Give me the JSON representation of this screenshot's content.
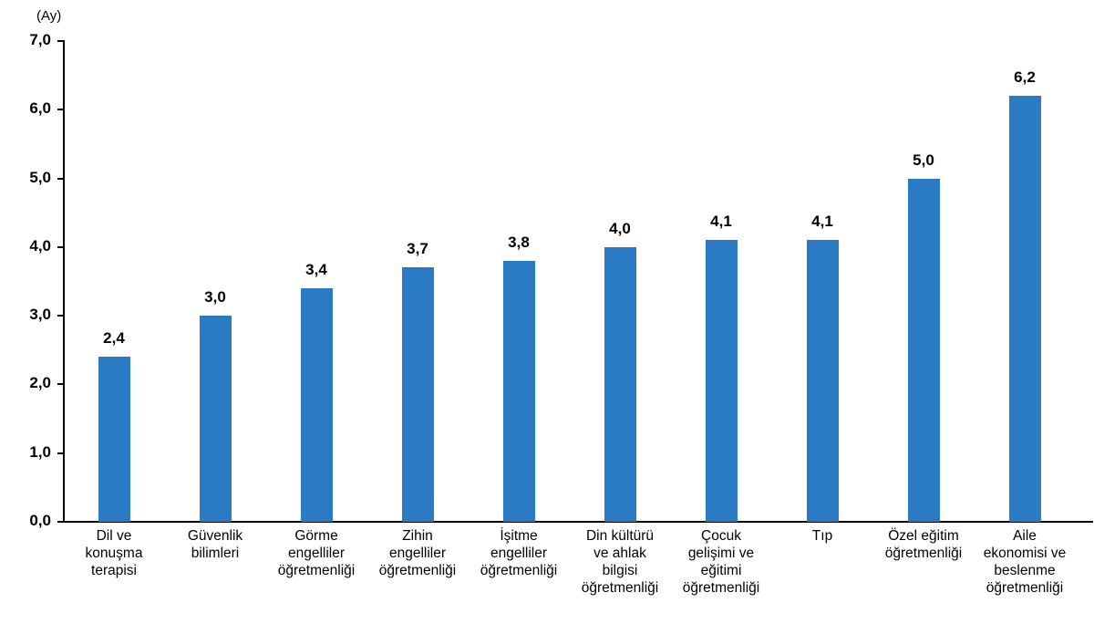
{
  "chart_data": {
    "type": "bar",
    "title": "",
    "xlabel": "",
    "ylabel": "(Ay)",
    "ylim": [
      0,
      7
    ],
    "grid": false,
    "legend": null,
    "y_ticks": [
      "0,0",
      "1,0",
      "2,0",
      "3,0",
      "4,0",
      "5,0",
      "6,0",
      "7,0"
    ],
    "categories": [
      "Dil ve\nkonuşma\nterapisi",
      "Güvenlik\nbilimleri",
      "Görme\nengelliler\nöğretmenliği",
      "Zihin\nengelliler\nöğretmenliği",
      "İşitme\nengelliler\nöğretmenliği",
      "Din kültürü\nve ahlak\nbilgisi\nöğretmenliği",
      "Çocuk\ngelişimi ve\neğitimi\nöğretmenliği",
      "Tıp",
      "Özel eğitim\nöğretmenliği",
      "Aile\nekonomisi ve\nbeslenme\nöğretmenliği"
    ],
    "values": [
      2.4,
      3.0,
      3.4,
      3.7,
      3.8,
      4.0,
      4.1,
      4.1,
      5.0,
      6.2
    ],
    "value_labels": [
      "2,4",
      "3,0",
      "3,4",
      "3,7",
      "3,8",
      "4,0",
      "4,1",
      "4,1",
      "5,0",
      "6,2"
    ],
    "bar_color": "#2a7bc4"
  }
}
